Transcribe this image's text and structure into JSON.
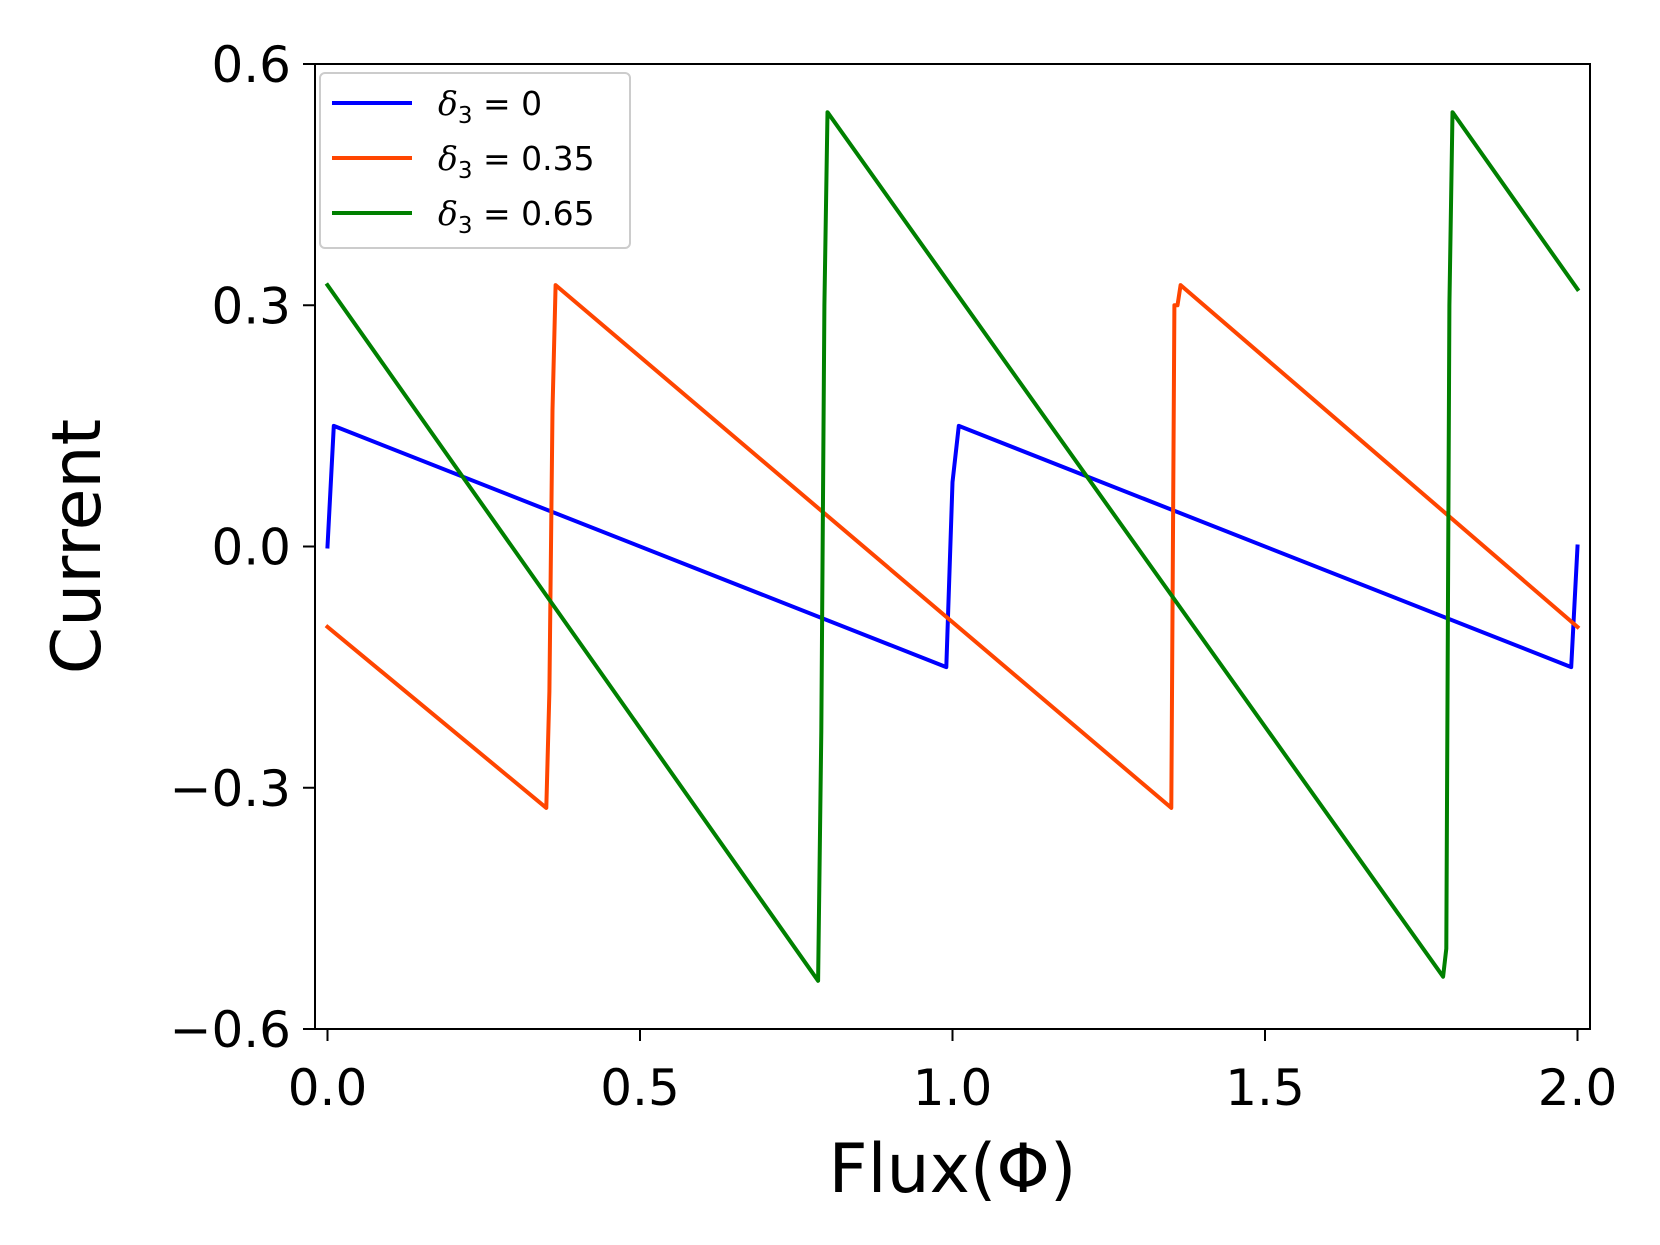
{
  "chart_data": {
    "type": "line",
    "xlabel": "Flux(Φ)",
    "ylabel": "Current",
    "xlim": [
      -0.02,
      2.02
    ],
    "ylim": [
      -0.6,
      0.6
    ],
    "xticks": [
      0.0,
      0.5,
      1.0,
      1.5,
      2.0
    ],
    "xtick_labels": [
      "0.0",
      "0.5",
      "1.0",
      "1.5",
      "2.0"
    ],
    "yticks": [
      -0.6,
      -0.3,
      0.0,
      0.3,
      0.6
    ],
    "ytick_labels": [
      "−0.6",
      "−0.3",
      "0.0",
      "0.3",
      "0.6"
    ],
    "grid": false,
    "legend_position": "top-left",
    "series": [
      {
        "name": "δ3 = 0",
        "symbol": "δ",
        "subscript": "3",
        "value_text": " = 0",
        "color": "#0000ff",
        "x": [
          0.0,
          0.01,
          0.99,
          1.0,
          1.01,
          1.99,
          2.0
        ],
        "y": [
          0.0,
          0.15,
          -0.15,
          0.08,
          0.15,
          -0.15,
          0.0
        ]
      },
      {
        "name": "δ3 = 0.35",
        "symbol": "δ",
        "subscript": "3",
        "value_text": " = 0.35",
        "color": "#ff4500",
        "x": [
          0.0,
          0.35,
          0.355,
          0.36,
          0.365,
          1.35,
          1.355,
          1.36,
          1.365,
          2.0
        ],
        "y": [
          -0.1,
          -0.325,
          -0.18,
          0.17,
          0.325,
          -0.325,
          0.3,
          0.3,
          0.325,
          -0.1
        ]
      },
      {
        "name": "δ3 = 0.65",
        "symbol": "δ",
        "subscript": "3",
        "value_text": " = 0.65",
        "color": "#008000",
        "x": [
          0.0,
          0.785,
          0.79,
          0.795,
          0.8,
          1.785,
          1.79,
          1.795,
          1.8,
          2.0
        ],
        "y": [
          0.325,
          -0.54,
          -0.23,
          0.3,
          0.54,
          -0.535,
          -0.5,
          0.3,
          0.54,
          0.32
        ]
      }
    ]
  }
}
